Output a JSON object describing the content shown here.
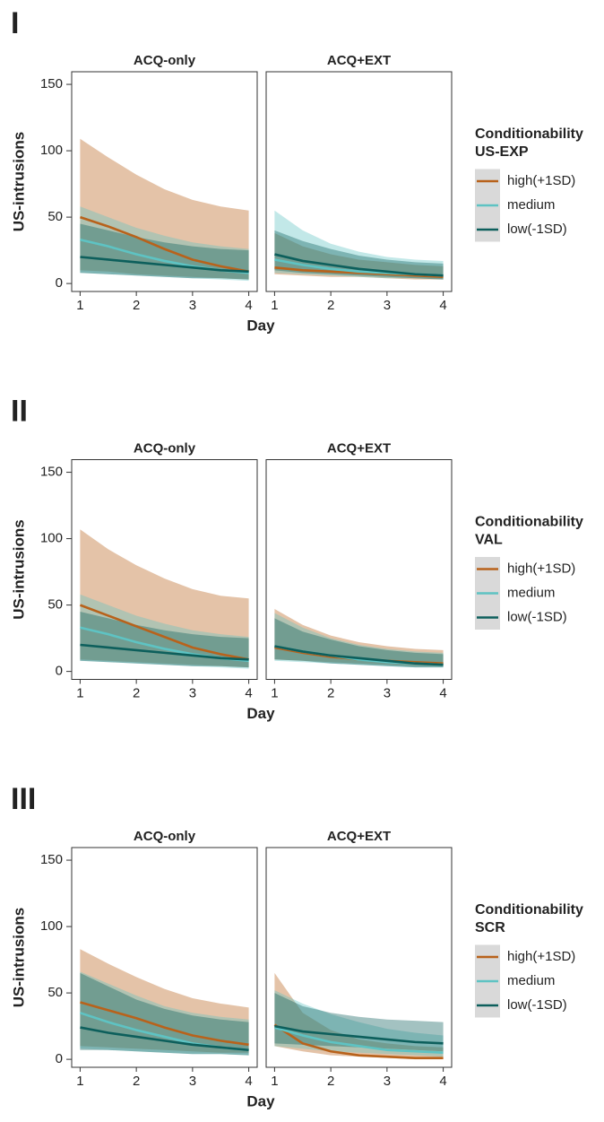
{
  "chart_data": [
    {
      "type": "line",
      "panel_label": "I",
      "y_label": "US-intrusions",
      "x_label": "Day",
      "legend_title": "Conditionability",
      "legend_subtitle": "US-EXP",
      "facets": [
        "ACQ-only",
        "ACQ+EXT"
      ],
      "x": [
        1,
        1.5,
        2,
        2.5,
        3,
        3.5,
        4
      ],
      "xlim": [
        0.85,
        4.15
      ],
      "xticks": [
        1,
        2,
        3,
        4
      ],
      "ylim": [
        -6,
        159.5
      ],
      "yticks": [
        0,
        50,
        100,
        150
      ],
      "series": [
        {
          "name": "high(+1SD)",
          "color": "#b8621b",
          "facets": [
            {
              "values": [
                50,
                43,
                35,
                26,
                18,
                13,
                9
              ],
              "lower": [
                10,
                9,
                7,
                6,
                5,
                4,
                3
              ],
              "upper": [
                109,
                95,
                82,
                71,
                63,
                58,
                55
              ]
            },
            {
              "values": [
                12,
                10,
                9,
                8,
                7,
                6,
                5
              ],
              "lower": [
                7,
                6,
                5,
                5,
                4,
                3,
                3
              ],
              "upper": [
                38,
                28,
                22,
                18,
                16,
                14,
                13
              ]
            }
          ]
        },
        {
          "name": "medium",
          "color": "#5ec3c3",
          "facets": [
            {
              "values": [
                33,
                28,
                22,
                17,
                13,
                10,
                8
              ],
              "lower": [
                8,
                7,
                6,
                5,
                4,
                3,
                2
              ],
              "upper": [
                58,
                50,
                42,
                36,
                31,
                28,
                26
              ]
            },
            {
              "values": [
                18,
                14,
                11,
                9,
                8,
                7,
                6
              ],
              "lower": [
                8,
                7,
                6,
                5,
                4,
                4,
                3
              ],
              "upper": [
                55,
                40,
                30,
                24,
                20,
                18,
                17
              ]
            }
          ]
        },
        {
          "name": "low(-1SD)",
          "color": "#0d5f5c",
          "facets": [
            {
              "values": [
                20,
                18,
                16,
                14,
                12,
                10,
                9
              ],
              "lower": [
                8,
                7,
                6,
                5,
                4,
                4,
                3
              ],
              "upper": [
                45,
                40,
                35,
                31,
                28,
                26,
                25
              ]
            },
            {
              "values": [
                22,
                17,
                14,
                11,
                9,
                7,
                6
              ],
              "lower": [
                10,
                8,
                7,
                6,
                5,
                4,
                3
              ],
              "upper": [
                40,
                32,
                26,
                21,
                18,
                16,
                15
              ]
            }
          ]
        }
      ]
    },
    {
      "type": "line",
      "panel_label": "II",
      "y_label": "US-intrusions",
      "x_label": "Day",
      "legend_title": "Conditionability",
      "legend_subtitle": "VAL",
      "facets": [
        "ACQ-only",
        "ACQ+EXT"
      ],
      "x": [
        1,
        1.5,
        2,
        2.5,
        3,
        3.5,
        4
      ],
      "xlim": [
        0.85,
        4.15
      ],
      "xticks": [
        1,
        2,
        3,
        4
      ],
      "ylim": [
        -6,
        159.5
      ],
      "yticks": [
        0,
        50,
        100,
        150
      ],
      "series": [
        {
          "name": "high(+1SD)",
          "color": "#b8621b",
          "facets": [
            {
              "values": [
                50,
                42,
                34,
                26,
                18,
                13,
                9
              ],
              "lower": [
                9,
                8,
                7,
                6,
                5,
                4,
                3
              ],
              "upper": [
                107,
                92,
                80,
                70,
                62,
                57,
                55
              ]
            },
            {
              "values": [
                18,
                14,
                11,
                9,
                8,
                7,
                6
              ],
              "lower": [
                9,
                8,
                7,
                6,
                5,
                4,
                4
              ],
              "upper": [
                47,
                35,
                27,
                22,
                19,
                17,
                16
              ]
            }
          ]
        },
        {
          "name": "medium",
          "color": "#5ec3c3",
          "facets": [
            {
              "values": [
                33,
                28,
                22,
                17,
                13,
                10,
                8
              ],
              "lower": [
                8,
                7,
                6,
                5,
                4,
                3,
                2
              ],
              "upper": [
                58,
                50,
                42,
                36,
                31,
                28,
                26
              ]
            },
            {
              "values": [
                19,
                15,
                12,
                9,
                7,
                6,
                5
              ],
              "lower": [
                8,
                7,
                6,
                5,
                4,
                3,
                3
              ],
              "upper": [
                44,
                33,
                25,
                20,
                17,
                15,
                14
              ]
            }
          ]
        },
        {
          "name": "low(-1SD)",
          "color": "#0d5f5c",
          "facets": [
            {
              "values": [
                20,
                18,
                16,
                14,
                12,
                10,
                9
              ],
              "lower": [
                8,
                7,
                6,
                5,
                4,
                4,
                3
              ],
              "upper": [
                45,
                40,
                35,
                31,
                28,
                26,
                25
              ]
            },
            {
              "values": [
                19,
                15,
                12,
                10,
                8,
                6,
                5
              ],
              "lower": [
                9,
                8,
                6,
                5,
                4,
                3,
                3
              ],
              "upper": [
                40,
                30,
                24,
                19,
                16,
                14,
                13
              ]
            }
          ]
        }
      ]
    },
    {
      "type": "line",
      "panel_label": "III",
      "y_label": "US-intrusions",
      "x_label": "Day",
      "legend_title": "Conditionability",
      "legend_subtitle": "SCR",
      "facets": [
        "ACQ-only",
        "ACQ+EXT"
      ],
      "x": [
        1,
        1.5,
        2,
        2.5,
        3,
        3.5,
        4
      ],
      "xlim": [
        0.85,
        4.15
      ],
      "xticks": [
        1,
        2,
        3,
        4
      ],
      "ylim": [
        -6,
        159.5
      ],
      "yticks": [
        0,
        50,
        100,
        150
      ],
      "series": [
        {
          "name": "high(+1SD)",
          "color": "#b8621b",
          "facets": [
            {
              "values": [
                43,
                37,
                31,
                24,
                18,
                14,
                11
              ],
              "lower": [
                10,
                9,
                8,
                7,
                6,
                5,
                5
              ],
              "upper": [
                83,
                72,
                62,
                53,
                46,
                42,
                39
              ]
            },
            {
              "values": [
                26,
                12,
                6,
                3,
                2,
                1,
                1
              ],
              "lower": [
                10,
                6,
                3,
                2,
                1,
                0,
                0
              ],
              "upper": [
                65,
                35,
                22,
                15,
                12,
                10,
                9
              ]
            }
          ]
        },
        {
          "name": "medium",
          "color": "#5ec3c3",
          "facets": [
            {
              "values": [
                35,
                28,
                22,
                17,
                12,
                9,
                7
              ],
              "lower": [
                8,
                7,
                6,
                5,
                4,
                4,
                3
              ],
              "upper": [
                66,
                57,
                48,
                40,
                35,
                32,
                30
              ]
            },
            {
              "values": [
                24,
                18,
                13,
                10,
                7,
                6,
                5
              ],
              "lower": [
                10,
                8,
                6,
                5,
                4,
                3,
                2
              ],
              "upper": [
                52,
                42,
                34,
                28,
                23,
                20,
                18
              ]
            }
          ]
        },
        {
          "name": "low(-1SD)",
          "color": "#0d5f5c",
          "facets": [
            {
              "values": [
                24,
                20,
                17,
                14,
                11,
                9,
                7
              ],
              "lower": [
                7,
                7,
                6,
                5,
                4,
                4,
                3
              ],
              "upper": [
                65,
                55,
                45,
                38,
                33,
                30,
                28
              ]
            },
            {
              "values": [
                25,
                21,
                19,
                17,
                15,
                13,
                12
              ],
              "lower": [
                12,
                11,
                10,
                9,
                8,
                7,
                6
              ],
              "upper": [
                50,
                40,
                35,
                32,
                30,
                29,
                28
              ]
            }
          ]
        }
      ]
    }
  ]
}
